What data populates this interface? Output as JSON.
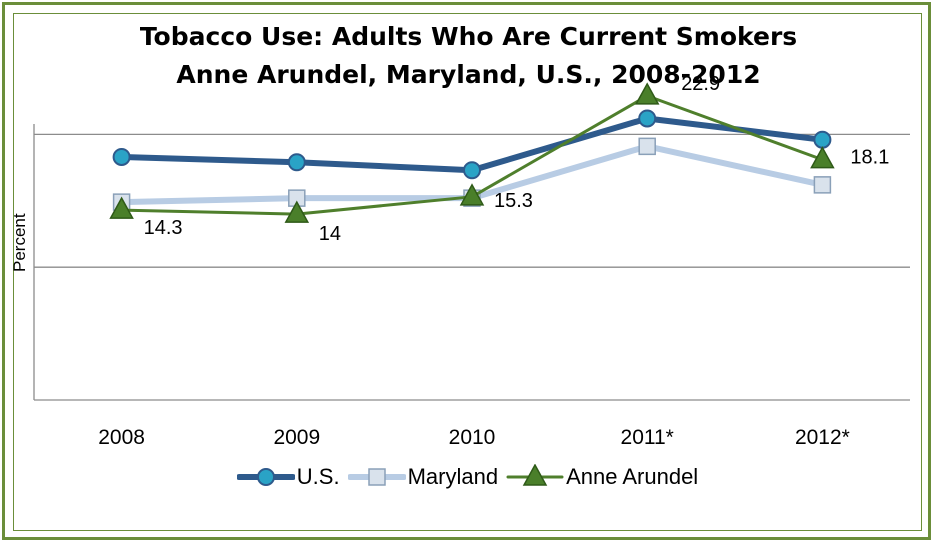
{
  "chart_data": {
    "type": "line",
    "title": [
      "Tobacco Use: Adults Who Are Current Smokers",
      "Anne Arundel, Maryland, U.S., 2008-2012"
    ],
    "ylabel": "Percent",
    "xlabel": "",
    "categories": [
      "2008",
      "2009",
      "2010",
      "2011*",
      "2012*"
    ],
    "ylim": [
      0,
      25
    ],
    "grid": true,
    "legend_position": "bottom",
    "series": [
      {
        "name": "U.S.",
        "values": [
          18.3,
          17.9,
          17.3,
          21.2,
          19.6
        ],
        "color": "#2e5a8c",
        "marker": "circle",
        "show_labels": false
      },
      {
        "name": "Maryland",
        "values": [
          14.9,
          15.2,
          15.2,
          19.1,
          16.2
        ],
        "color": "#b8cce4",
        "marker": "square",
        "show_labels": false
      },
      {
        "name": "Anne Arundel",
        "values": [
          14.3,
          14.0,
          15.3,
          22.9,
          18.1
        ],
        "color": "#4f7f2c",
        "marker": "triangle",
        "show_labels": true
      }
    ],
    "data_labels": [
      "14.3",
      "14",
      "15.3",
      "22.9",
      "18.1"
    ]
  }
}
